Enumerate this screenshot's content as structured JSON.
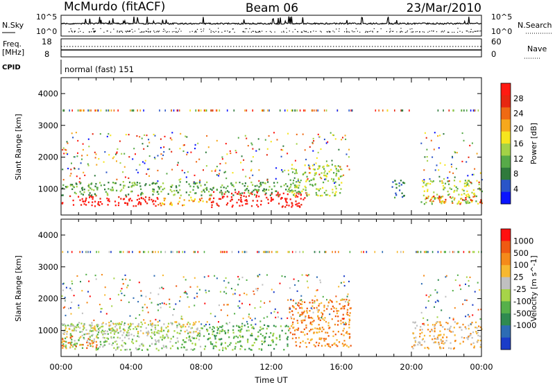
{
  "header": {
    "station": "McMurdo (fitACF)",
    "beam": "Beam 06",
    "date": "23/Mar/2010"
  },
  "noise_panel": {
    "left_label": "N.Sky",
    "right_label": "N.Search",
    "left_ticks": [
      "10^5",
      "10^0"
    ],
    "right_ticks": [
      "10^5",
      "10^0"
    ]
  },
  "freq_panel": {
    "left_label_1": "Freq.",
    "left_label_2": "[MHz]",
    "right_label": "Nave",
    "left_ticks": [
      "18",
      "8"
    ],
    "right_ticks": [
      "60",
      "0"
    ]
  },
  "cpid": {
    "label": "CPID",
    "value": "normal (fast) 151"
  },
  "x_axis": {
    "label": "Time UT",
    "ticks": [
      "00:00",
      "04:00",
      "08:00",
      "12:00",
      "16:00",
      "20:00",
      "00:00"
    ]
  },
  "chart_data": [
    {
      "type": "heatmap",
      "quantity": "power",
      "ylabel": "Slant Range [km]",
      "y_ticks": [
        1000,
        2000,
        3000,
        4000
      ],
      "ylim": [
        180,
        4500
      ],
      "xlim_hours": [
        0,
        24
      ],
      "colorbar": {
        "label": "Power [dB]",
        "ticks": [
          "4",
          "8",
          "12",
          "16",
          "20",
          "24",
          "28"
        ],
        "colors": [
          "#0a14ff",
          "#2a55c8",
          "#2f7a3c",
          "#57aa48",
          "#a4d247",
          "#f6e51e",
          "#f6a81c",
          "#ef6a14",
          "#e72710",
          "#ff1a12"
        ]
      },
      "echo_regions": [
        {
          "t0": 0.0,
          "t1": 5.5,
          "r0": 480,
          "r1": 820,
          "level": 9
        },
        {
          "t0": 5.5,
          "t1": 8.5,
          "r0": 500,
          "r1": 780,
          "level": 6
        },
        {
          "t0": 8.5,
          "t1": 14.0,
          "r0": 450,
          "r1": 950,
          "level": 9
        },
        {
          "t0": 0.0,
          "t1": 14.0,
          "r0": 820,
          "r1": 1250,
          "level": 3
        },
        {
          "t0": 13.0,
          "t1": 16.0,
          "r0": 800,
          "r1": 1800,
          "level": 4
        },
        {
          "t0": 20.5,
          "t1": 24.0,
          "r0": 550,
          "r1": 1300,
          "level": 4
        },
        {
          "t0": 20.8,
          "t1": 24.0,
          "r0": 550,
          "r1": 800,
          "level": 7
        },
        {
          "t0": 18.8,
          "t1": 19.6,
          "r0": 700,
          "r1": 1300,
          "level": 2
        }
      ]
    },
    {
      "type": "heatmap",
      "quantity": "velocity",
      "ylabel": "Slant Range [km]",
      "y_ticks": [
        1000,
        2000,
        3000,
        4000
      ],
      "ylim": [
        180,
        4500
      ],
      "xlim_hours": [
        0,
        24
      ],
      "colorbar": {
        "label": "Velocity [m s^-1]",
        "ticks": [
          "1000",
          "500",
          "100",
          "25",
          "-25",
          "-100",
          "-500",
          "-1000"
        ],
        "colors": [
          "#1a3cc8",
          "#2d6cb4",
          "#2f8a50",
          "#56b04a",
          "#a6d448",
          "#c0c0c0",
          "#f7b830",
          "#f58a1a",
          "#ef5a12",
          "#ff1010"
        ]
      },
      "echo_regions": [
        {
          "t0": 0.0,
          "t1": 8.0,
          "r0": 400,
          "r1": 1250,
          "level": 4
        },
        {
          "t0": 0.0,
          "t1": 8.0,
          "r0": 900,
          "r1": 1300,
          "level": 5
        },
        {
          "t0": 8.0,
          "t1": 13.0,
          "r0": 400,
          "r1": 1200,
          "level": 3
        },
        {
          "t0": 13.0,
          "t1": 16.5,
          "r0": 500,
          "r1": 2000,
          "level": 7
        },
        {
          "t0": 20.0,
          "t1": 24.0,
          "r0": 450,
          "r1": 1300,
          "level": 6
        },
        {
          "t0": 0.0,
          "t1": 2.0,
          "r0": 450,
          "r1": 850,
          "level": 7
        }
      ]
    }
  ]
}
